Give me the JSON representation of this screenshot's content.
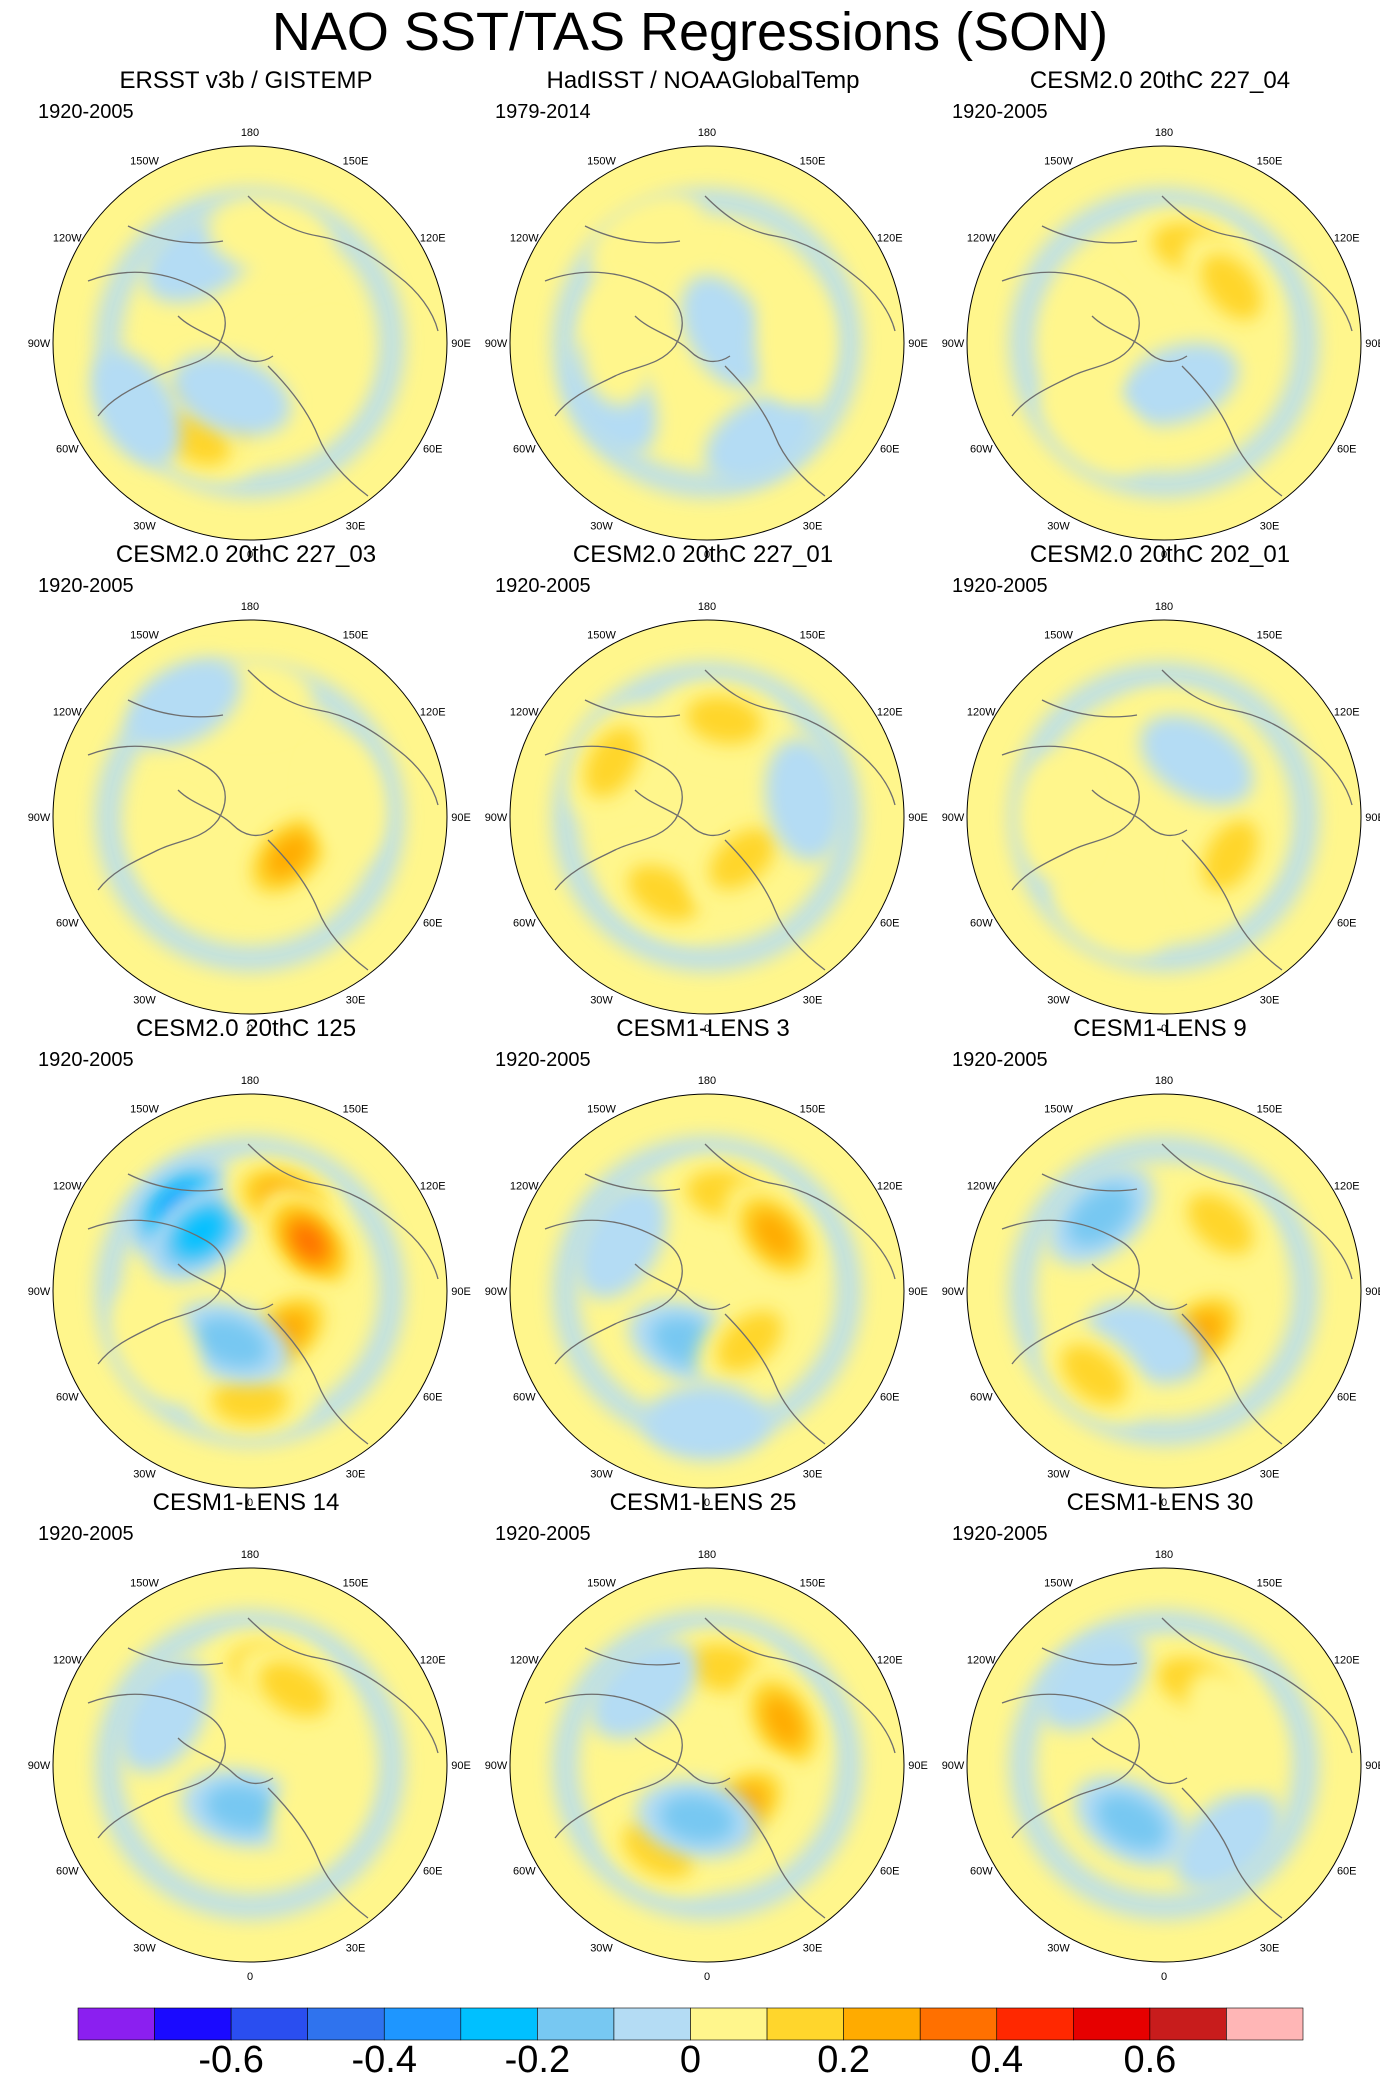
{
  "title": "NAO SST/TAS Regressions (SON)",
  "longitude_labels": [
    "180",
    "150E",
    "120E",
    "90E",
    "60E",
    "30E",
    "0",
    "30W",
    "60W",
    "90W",
    "120W",
    "150W"
  ],
  "panels": [
    {
      "title": "ERSST v3b / GISTEMP",
      "period": "1920-2005",
      "blobs": [
        {
          "at": "30W-50N",
          "level": 0.35
        },
        {
          "at": "30W-40N",
          "level": 0.2
        },
        {
          "at": "60W-30N",
          "level": -0.1
        },
        {
          "at": "150W-45N",
          "level": -0.15
        },
        {
          "at": "170E-40N",
          "level": 0.1
        },
        {
          "at": "60E-55N",
          "level": 0.1
        },
        {
          "at": "20W-65N",
          "level": -0.1
        }
      ]
    },
    {
      "title": "HadISST / NOAAGlobalTemp",
      "period": "1979-2014",
      "blobs": [
        {
          "at": "150W-35N",
          "level": 0.1
        },
        {
          "at": "60W-40N",
          "level": -0.15
        },
        {
          "at": "90W-50N",
          "level": 0.05
        },
        {
          "at": "30E-40N",
          "level": -0.15
        },
        {
          "at": "120E-80N",
          "level": -0.15
        },
        {
          "at": "90E-50N",
          "level": 0.05
        }
      ]
    },
    {
      "title": "CESM2.0 20thC 227_04",
      "period": "1920-2005",
      "blobs": [
        {
          "at": "165E-45N",
          "level": 0.2
        },
        {
          "at": "130E-50N",
          "level": 0.25
        },
        {
          "at": "20E-70N",
          "level": -0.15
        },
        {
          "at": "90W-55N",
          "level": 0.05
        },
        {
          "at": "40W-40N",
          "level": 0.05
        }
      ]
    },
    {
      "title": "CESM2.0 20thC 227_03",
      "period": "1920-2005",
      "blobs": [
        {
          "at": "45E-65N",
          "level": 0.3
        },
        {
          "at": "180-35N",
          "level": 0.05
        },
        {
          "at": "60W-55N",
          "level": 0.05
        },
        {
          "at": "100E-45N",
          "level": 0.05
        },
        {
          "at": "150W-30N",
          "level": -0.1
        }
      ]
    },
    {
      "title": "CESM2.0 20thC 227_01",
      "period": "1920-2005",
      "blobs": [
        {
          "at": "170E-45N",
          "level": 0.2
        },
        {
          "at": "30W-50N",
          "level": 0.2
        },
        {
          "at": "40E-65N",
          "level": 0.25
        },
        {
          "at": "120W-40N",
          "level": 0.2
        },
        {
          "at": "100E-45N",
          "level": -0.1
        }
      ]
    },
    {
      "title": "CESM2.0 20thC 202_01",
      "period": "1920-2005",
      "blobs": [
        {
          "at": "170E-50N",
          "level": 0.15
        },
        {
          "at": "60E-55N",
          "level": 0.2
        },
        {
          "at": "30W-40N",
          "level": 0.1
        },
        {
          "at": "150E-60N",
          "level": -0.1
        },
        {
          "at": "90W-40N",
          "level": 0.05
        }
      ]
    },
    {
      "title": "CESM2.0 20thC 125",
      "period": "1920-2005",
      "blobs": [
        {
          "at": "140W-40N",
          "level": -0.45
        },
        {
          "at": "140W-55N",
          "level": -0.3
        },
        {
          "at": "160E-45N",
          "level": 0.3
        },
        {
          "at": "130E-55N",
          "level": 0.45
        },
        {
          "at": "40E-65N",
          "level": 0.35
        },
        {
          "at": "0-40N",
          "level": 0.25
        },
        {
          "at": "20W-65N",
          "level": -0.2
        },
        {
          "at": "60W-40N",
          "level": 0.15
        }
      ]
    },
    {
      "title": "CESM1-LENS 3",
      "period": "1920-2005",
      "blobs": [
        {
          "at": "170E-45N",
          "level": 0.2
        },
        {
          "at": "130E-50N",
          "level": 0.35
        },
        {
          "at": "20W-65N",
          "level": -0.2
        },
        {
          "at": "40E-60N",
          "level": 0.25
        },
        {
          "at": "120W-45N",
          "level": -0.1
        },
        {
          "at": "0-30N",
          "level": -0.1
        }
      ]
    },
    {
      "title": "CESM1-LENS 9",
      "period": "1920-2005",
      "blobs": [
        {
          "at": "140E-50N",
          "level": 0.25
        },
        {
          "at": "140W-45N",
          "level": -0.2
        },
        {
          "at": "40E-65N",
          "level": 0.3
        },
        {
          "at": "20W-65N",
          "level": -0.15
        },
        {
          "at": "40W-40N",
          "level": 0.2
        }
      ]
    },
    {
      "title": "CESM1-LENS 14",
      "period": "1920-2005",
      "blobs": [
        {
          "at": "170E-45N",
          "level": 0.2
        },
        {
          "at": "150E-50N",
          "level": 0.25
        },
        {
          "at": "10W-70N",
          "level": -0.25
        },
        {
          "at": "120W-45N",
          "level": -0.15
        },
        {
          "at": "60E-55N",
          "level": 0.15
        }
      ]
    },
    {
      "title": "CESM1-LENS 25",
      "period": "1920-2005",
      "blobs": [
        {
          "at": "170E-45N",
          "level": 0.2
        },
        {
          "at": "120E-50N",
          "level": 0.3
        },
        {
          "at": "40E-65N",
          "level": 0.35
        },
        {
          "at": "30W-45N",
          "level": 0.2
        },
        {
          "at": "10W-65N",
          "level": -0.2
        },
        {
          "at": "140W-45N",
          "level": -0.1
        }
      ]
    },
    {
      "title": "CESM1-LENS 30",
      "period": "1920-2005",
      "blobs": [
        {
          "at": "160E-50N",
          "level": 0.25
        },
        {
          "at": "30W-60N",
          "level": -0.25
        },
        {
          "at": "140W-40N",
          "level": -0.1
        },
        {
          "at": "40E-45N",
          "level": -0.15
        },
        {
          "at": "120E-55N",
          "level": 0.15
        }
      ]
    }
  ],
  "colorbar": {
    "colors": [
      "#8b1ff0",
      "#1a0aff",
      "#2a4ef0",
      "#2f73ee",
      "#1e96ff",
      "#00c0ff",
      "#77c8f2",
      "#b4dcf4",
      "#fff68c",
      "#ffd62c",
      "#ffab00",
      "#ff7000",
      "#ff2800",
      "#e60000",
      "#c81c1c",
      "#ffb6b6"
    ],
    "labels": [
      {
        "text": "-0.6",
        "value": -0.6
      },
      {
        "text": "-0.4",
        "value": -0.4
      },
      {
        "text": "-0.2",
        "value": -0.2
      },
      {
        "text": "0",
        "value": 0
      },
      {
        "text": "0.2",
        "value": 0.2
      },
      {
        "text": "0.4",
        "value": 0.4
      },
      {
        "text": "0.6",
        "value": 0.6
      }
    ],
    "min": -0.8,
    "max": 0.8,
    "step": 0.1
  },
  "chart_data": {
    "type": "heatmap",
    "title": "NAO SST/TAS Regressions (SON)",
    "projection": "polar stereographic, northern hemisphere",
    "units": "",
    "levels": [
      -0.7,
      -0.6,
      -0.5,
      -0.4,
      -0.3,
      -0.2,
      -0.1,
      0,
      0.1,
      0.2,
      0.3,
      0.4,
      0.5,
      0.6,
      0.7
    ],
    "colorbar_range": [
      -0.8,
      0.8
    ]
  }
}
